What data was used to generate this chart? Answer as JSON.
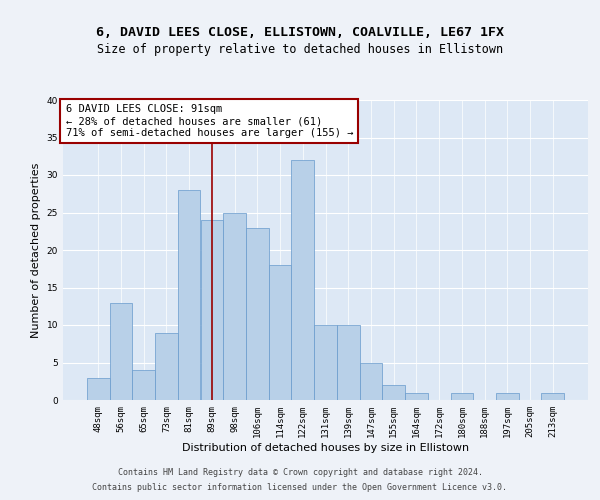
{
  "title": "6, DAVID LEES CLOSE, ELLISTOWN, COALVILLE, LE67 1FX",
  "subtitle": "Size of property relative to detached houses in Ellistown",
  "xlabel": "Distribution of detached houses by size in Ellistown",
  "ylabel": "Number of detached properties",
  "bar_labels": [
    "48sqm",
    "56sqm",
    "65sqm",
    "73sqm",
    "81sqm",
    "89sqm",
    "98sqm",
    "106sqm",
    "114sqm",
    "122sqm",
    "131sqm",
    "139sqm",
    "147sqm",
    "155sqm",
    "164sqm",
    "172sqm",
    "180sqm",
    "188sqm",
    "197sqm",
    "205sqm",
    "213sqm"
  ],
  "bar_values": [
    3,
    13,
    4,
    9,
    28,
    24,
    25,
    23,
    18,
    32,
    10,
    10,
    5,
    2,
    1,
    0,
    1,
    0,
    1,
    0,
    1
  ],
  "bar_color": "#b8d0e8",
  "bar_edge_color": "#6699cc",
  "bar_edge_width": 0.5,
  "vline_x_index": 5,
  "vline_color": "#990000",
  "annotation_title": "6 DAVID LEES CLOSE: 91sqm",
  "annotation_line1": "← 28% of detached houses are smaller (61)",
  "annotation_line2": "71% of semi-detached houses are larger (155) →",
  "annotation_box_color": "#ffffff",
  "annotation_box_edge_color": "#990000",
  "ylim": [
    0,
    40
  ],
  "yticks": [
    0,
    5,
    10,
    15,
    20,
    25,
    30,
    35,
    40
  ],
  "background_color": "#eef2f8",
  "plot_bg_color": "#dde8f5",
  "footer_line1": "Contains HM Land Registry data © Crown copyright and database right 2024.",
  "footer_line2": "Contains public sector information licensed under the Open Government Licence v3.0.",
  "title_fontsize": 9.5,
  "subtitle_fontsize": 8.5,
  "xlabel_fontsize": 8,
  "ylabel_fontsize": 8,
  "tick_fontsize": 6.5,
  "footer_fontsize": 6,
  "annotation_fontsize": 7.5
}
